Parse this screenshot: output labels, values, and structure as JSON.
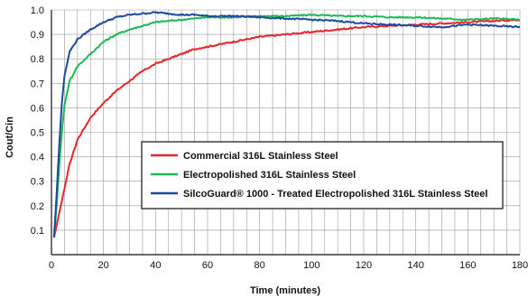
{
  "chart_data": {
    "type": "line",
    "title": "",
    "xlabel": "Time (minutes)",
    "ylabel": "Cout/Cin",
    "xlim": [
      0,
      180
    ],
    "ylim": [
      0,
      1.0
    ],
    "xticks": [
      0,
      20,
      40,
      60,
      80,
      100,
      120,
      140,
      160,
      180
    ],
    "yticks": [
      0.1,
      0.2,
      0.3,
      0.4,
      0.5,
      0.6,
      0.7,
      0.8,
      0.9,
      1.0
    ],
    "xtick_labels": [
      "0",
      "20",
      "40",
      "60",
      "80",
      "100",
      "120",
      "140",
      "160",
      "180"
    ],
    "ytick_labels": [
      "0.1",
      "0.2",
      "0.3",
      "0.4",
      "0.5",
      "0.6",
      "0.7",
      "0.8",
      "0.9",
      "1.0"
    ],
    "grid": true,
    "legend_position": "center-right",
    "series": [
      {
        "name": "Commercial 316L Stainless Steel",
        "color": "#e8232a",
        "x": [
          1,
          3,
          5,
          7,
          10,
          15,
          20,
          25,
          30,
          35,
          40,
          45,
          50,
          55,
          60,
          70,
          80,
          90,
          100,
          110,
          120,
          130,
          140,
          150,
          160,
          170,
          180
        ],
        "y": [
          0.07,
          0.17,
          0.27,
          0.37,
          0.47,
          0.56,
          0.62,
          0.67,
          0.71,
          0.75,
          0.78,
          0.8,
          0.82,
          0.84,
          0.85,
          0.87,
          0.89,
          0.9,
          0.91,
          0.92,
          0.93,
          0.935,
          0.94,
          0.945,
          0.95,
          0.955,
          0.96
        ]
      },
      {
        "name": "Electropolished 316L Stainless Steel",
        "color": "#1db955",
        "x": [
          1,
          2,
          3,
          4,
          5,
          7,
          10,
          15,
          20,
          25,
          30,
          40,
          50,
          60,
          70,
          80,
          90,
          100,
          110,
          120,
          130,
          140,
          150,
          160,
          170,
          180
        ],
        "y": [
          0.07,
          0.2,
          0.36,
          0.5,
          0.61,
          0.71,
          0.77,
          0.82,
          0.87,
          0.9,
          0.92,
          0.95,
          0.96,
          0.97,
          0.97,
          0.975,
          0.975,
          0.98,
          0.975,
          0.975,
          0.97,
          0.97,
          0.965,
          0.96,
          0.965,
          0.96
        ]
      },
      {
        "name": "SilcoGuard® 1000 - Treated Electropolished 316L Stainless Steel",
        "color": "#1c4a9c",
        "x": [
          1,
          2,
          3,
          4,
          5,
          7,
          10,
          15,
          20,
          25,
          30,
          35,
          40,
          45,
          50,
          55,
          60,
          70,
          80,
          90,
          100,
          110,
          120,
          130,
          140,
          150,
          160,
          170,
          180
        ],
        "y": [
          0.07,
          0.25,
          0.45,
          0.62,
          0.73,
          0.83,
          0.88,
          0.92,
          0.95,
          0.97,
          0.98,
          0.985,
          0.99,
          0.985,
          0.98,
          0.98,
          0.975,
          0.975,
          0.97,
          0.965,
          0.96,
          0.955,
          0.945,
          0.94,
          0.935,
          0.93,
          0.94,
          0.935,
          0.93
        ]
      }
    ]
  }
}
